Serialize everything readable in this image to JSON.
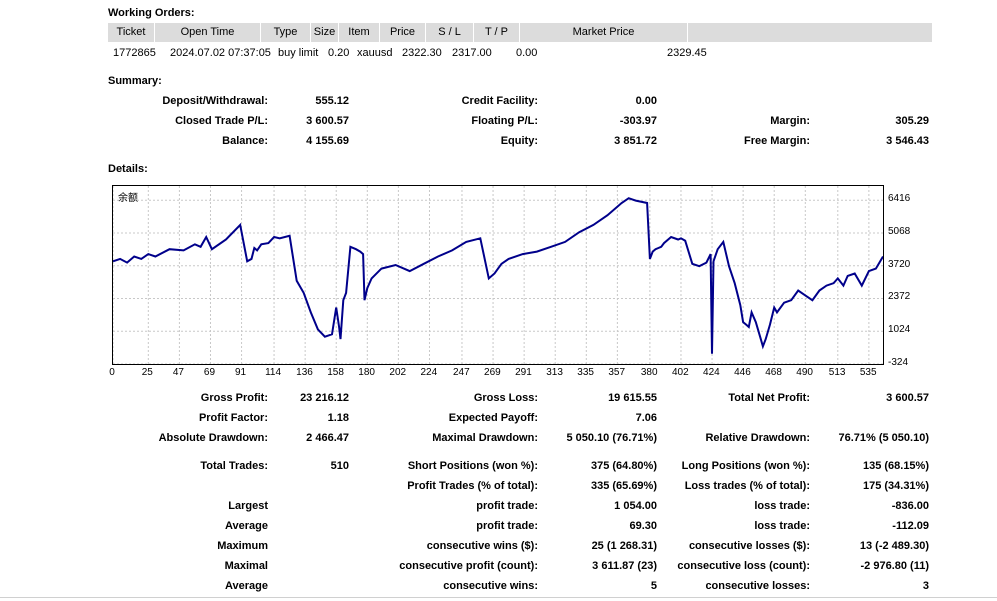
{
  "working_orders": {
    "title": "Working Orders:",
    "columns": [
      "Ticket",
      "Open Time",
      "Type",
      "Size",
      "Item",
      "Price",
      "S / L",
      "T / P",
      "Market Price"
    ],
    "row": {
      "ticket": "1772865",
      "open_time": "2024.07.02 07:37:05",
      "type": "buy limit",
      "size": "0.20",
      "item": "xauusd",
      "price": "2322.30",
      "sl": "2317.00",
      "tp": "0.00",
      "market_price": "2329.45"
    }
  },
  "summary": {
    "title": "Summary:",
    "deposit_label": "Deposit/Withdrawal:",
    "deposit_value": "555.12",
    "credit_label": "Credit Facility:",
    "credit_value": "0.00",
    "closed_label": "Closed Trade P/L:",
    "closed_value": "3 600.57",
    "floating_label": "Floating P/L:",
    "floating_value": "-303.97",
    "margin_label": "Margin:",
    "margin_value": "305.29",
    "balance_label": "Balance:",
    "balance_value": "4 155.69",
    "equity_label": "Equity:",
    "equity_value": "3 851.72",
    "free_margin_label": "Free Margin:",
    "free_margin_value": "3 546.43"
  },
  "details": {
    "title": "Details:",
    "gross_profit_label": "Gross Profit:",
    "gross_profit_value": "23 216.12",
    "gross_loss_label": "Gross Loss:",
    "gross_loss_value": "19 615.55",
    "net_profit_label": "Total Net Profit:",
    "net_profit_value": "3 600.57",
    "profit_factor_label": "Profit Factor:",
    "profit_factor_value": "1.18",
    "expected_payoff_label": "Expected Payoff:",
    "expected_payoff_value": "7.06",
    "abs_dd_label": "Absolute Drawdown:",
    "abs_dd_value": "2 466.47",
    "max_dd_label": "Maximal Drawdown:",
    "max_dd_value": "5 050.10 (76.71%)",
    "rel_dd_label": "Relative Drawdown:",
    "rel_dd_value": "76.71% (5 050.10)",
    "total_trades_label": "Total Trades:",
    "total_trades_value": "510",
    "short_label": "Short Positions (won %):",
    "short_value": "375 (64.80%)",
    "long_label": "Long Positions (won %):",
    "long_value": "135 (68.15%)",
    "profit_trades_label": "Profit Trades (% of total):",
    "profit_trades_value": "335 (65.69%)",
    "loss_trades_label": "Loss trades (% of total):",
    "loss_trades_value": "175 (34.31%)",
    "largest_label": "Largest",
    "largest_profit_label": "profit trade:",
    "largest_profit_value": "1 054.00",
    "largest_loss_label": "loss trade:",
    "largest_loss_value": "-836.00",
    "average_label": "Average",
    "average_profit_label": "profit trade:",
    "average_profit_value": "69.30",
    "average_loss_label": "loss trade:",
    "average_loss_value": "-112.09",
    "maximum_label": "Maximum",
    "max_cons_wins_label": "consecutive wins ($):",
    "max_cons_wins_value": "25 (1 268.31)",
    "max_cons_losses_label": "consecutive losses ($):",
    "max_cons_losses_value": "13 (-2 489.30)",
    "maximal_label": "Maximal",
    "maximal_cons_profit_label": "consecutive profit (count):",
    "maximal_cons_profit_value": "3 611.87 (23)",
    "maximal_cons_loss_label": "consecutive loss (count):",
    "maximal_cons_loss_value": "-2 976.80 (11)",
    "average2_label": "Average",
    "avg_cons_wins_label": "consecutive wins:",
    "avg_cons_wins_value": "5",
    "avg_cons_losses_label": "consecutive losses:",
    "avg_cons_losses_value": "3"
  },
  "chart_data": {
    "type": "line",
    "title": "余额",
    "line_color": "#00008b",
    "grid": true,
    "x_ticks": [
      "0",
      "25",
      "47",
      "69",
      "91",
      "114",
      "136",
      "158",
      "180",
      "202",
      "224",
      "247",
      "269",
      "291",
      "313",
      "335",
      "357",
      "380",
      "402",
      "424",
      "446",
      "468",
      "490",
      "513",
      "535"
    ],
    "y_ticks": [
      "6416",
      "5068",
      "3720",
      "2372",
      "1024",
      "-324"
    ],
    "xlim": [
      0,
      545
    ],
    "ylim": [
      -324,
      7000
    ],
    "x": [
      0,
      5,
      10,
      15,
      20,
      25,
      30,
      40,
      50,
      58,
      62,
      66,
      70,
      80,
      90,
      95,
      98,
      100,
      102,
      105,
      110,
      114,
      118,
      125,
      130,
      135,
      140,
      145,
      150,
      155,
      158,
      160,
      161,
      163,
      165,
      168,
      172,
      175,
      177,
      178,
      180,
      183,
      190,
      200,
      210,
      220,
      230,
      240,
      250,
      260,
      266,
      270,
      275,
      280,
      290,
      300,
      310,
      320,
      330,
      340,
      350,
      360,
      365,
      370,
      378,
      380,
      382,
      384,
      386,
      388,
      390,
      395,
      400,
      402,
      405,
      410,
      415,
      420,
      423,
      424,
      425,
      428,
      432,
      436,
      440,
      444,
      446,
      448,
      450,
      452,
      455,
      458,
      460,
      462,
      465,
      468,
      470,
      475,
      480,
      485,
      490,
      495,
      500,
      505,
      510,
      513,
      517,
      520,
      525,
      530,
      535,
      540,
      545
    ],
    "y": [
      3900,
      4000,
      3850,
      4100,
      4000,
      4200,
      4100,
      4400,
      4350,
      4600,
      4500,
      4900,
      4400,
      4800,
      5400,
      3900,
      4000,
      4450,
      4350,
      4600,
      4650,
      4900,
      4850,
      4950,
      3100,
      2600,
      1800,
      1100,
      800,
      900,
      2000,
      1200,
      700,
      2300,
      2600,
      4500,
      4400,
      4300,
      4200,
      2300,
      2800,
      3200,
      3600,
      3750,
      3500,
      3800,
      4100,
      4350,
      4700,
      4850,
      3200,
      3400,
      3800,
      4000,
      4200,
      4300,
      4500,
      4700,
      5100,
      5400,
      5800,
      6300,
      6500,
      6400,
      6300,
      4000,
      4300,
      4400,
      4450,
      4500,
      4650,
      4900,
      4800,
      4850,
      4750,
      3800,
      3700,
      3850,
      4200,
      100,
      3900,
      4400,
      4700,
      3700,
      3000,
      2100,
      1400,
      1300,
      1200,
      1800,
      1400,
      800,
      400,
      700,
      1300,
      2000,
      1800,
      2200,
      2300,
      2700,
      2500,
      2300,
      2700,
      2900,
      3000,
      3200,
      2900,
      3300,
      3400,
      2900,
      3500,
      3600,
      4100
    ]
  }
}
